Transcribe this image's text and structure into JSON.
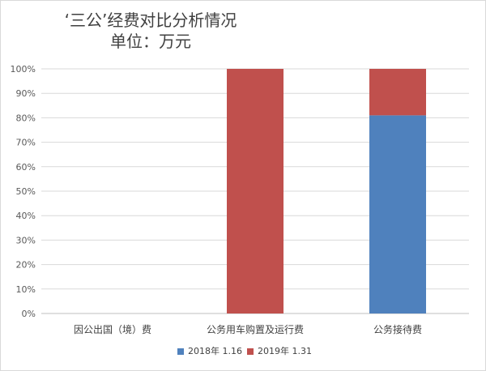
{
  "chart_data": {
    "type": "bar",
    "stacked": true,
    "title": "‘三公’经费对比分析情况",
    "subtitle": "单位：万元",
    "categories": [
      "因公出国（境）费",
      "公务用车购置及运行费",
      "公务接待费"
    ],
    "series": [
      {
        "name": "2018年 1.16",
        "color": "#4f81bd",
        "values": [
          0,
          0,
          0.81
        ]
      },
      {
        "name": "2019年 1.31",
        "color": "#c0504d",
        "values": [
          0,
          1.0,
          0.19
        ]
      }
    ],
    "ylim": [
      0,
      1
    ],
    "yticks": [
      "0%",
      "10%",
      "20%",
      "30%",
      "40%",
      "50%",
      "60%",
      "70%",
      "80%",
      "90%",
      "100%"
    ],
    "grid": true,
    "legend_position": "bottom"
  }
}
